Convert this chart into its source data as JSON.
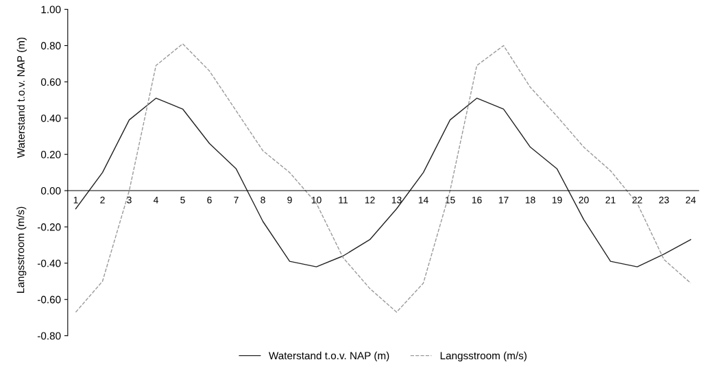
{
  "chart_data": {
    "type": "line",
    "ylabel": "Waterstand t.o.v. NAP (m)",
    "annotations": [
      "Langsstroom (m/s)"
    ],
    "categories": [
      "1",
      "2",
      "3",
      "4",
      "5",
      "6",
      "7",
      "8",
      "9",
      "10",
      "11",
      "12",
      "13",
      "14",
      "15",
      "16",
      "17",
      "18",
      "19",
      "20",
      "21",
      "22",
      "23",
      "24"
    ],
    "series": [
      {
        "name": "Waterstand t.o.v. NAP (m)",
        "color": "#222222",
        "line_style": "solid",
        "values": [
          -0.1,
          0.1,
          0.39,
          0.51,
          0.45,
          0.26,
          0.12,
          -0.17,
          -0.39,
          -0.42,
          -0.36,
          -0.27,
          -0.1,
          0.1,
          0.39,
          0.51,
          0.45,
          0.24,
          0.12,
          -0.16,
          -0.39,
          -0.42,
          -0.35,
          -0.27
        ]
      },
      {
        "name": "Langsstroom (m/s)",
        "color": "#999999",
        "line_style": "dashed",
        "values": [
          -0.67,
          -0.5,
          0.0,
          0.69,
          0.81,
          0.66,
          0.44,
          0.22,
          0.1,
          -0.07,
          -0.37,
          -0.54,
          -0.67,
          -0.51,
          0.0,
          0.69,
          0.8,
          0.57,
          0.41,
          0.24,
          0.11,
          -0.07,
          -0.38,
          -0.51
        ]
      }
    ],
    "ylim": [
      -0.8,
      1.0
    ],
    "yticks": [
      {
        "value": -0.8,
        "label": "-0.80"
      },
      {
        "value": -0.6,
        "label": "-0.60"
      },
      {
        "value": -0.4,
        "label": "-0.40"
      },
      {
        "value": -0.2,
        "label": "-0.20"
      },
      {
        "value": 0,
        "label": "0.00"
      },
      {
        "value": 0.2,
        "label": "0.20"
      },
      {
        "value": 0.4,
        "label": "0.40"
      },
      {
        "value": 0.6,
        "label": "0.60"
      },
      {
        "value": 0.8,
        "label": "0.80"
      },
      {
        "value": 1.0,
        "label": "1.00"
      }
    ],
    "grid": false,
    "legend": "bottom",
    "marker": "none"
  }
}
